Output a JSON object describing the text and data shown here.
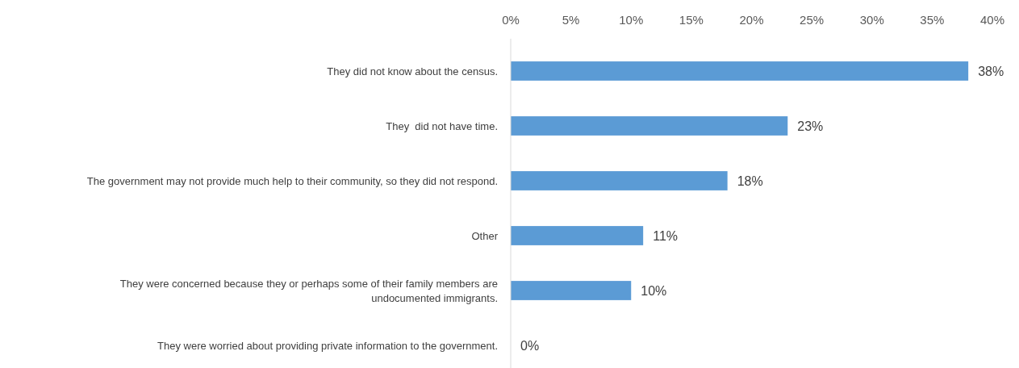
{
  "chart_data": {
    "type": "bar",
    "orientation": "horizontal",
    "categories": [
      "They did not know about the census.",
      "They  did not have time.",
      "The government may not provide much help to their community, so they did not respond.",
      "Other",
      "They were concerned because they or perhaps some of their family members are undocumented immigrants.",
      "They were worried about providing private information to the government."
    ],
    "values": [
      38,
      23,
      18,
      11,
      10,
      0
    ],
    "value_labels": [
      "38%",
      "23%",
      "18%",
      "11%",
      "10%",
      "0%"
    ],
    "color": "#5b9bd5",
    "xlim": [
      0,
      40
    ],
    "xticks": [
      {
        "value": 0,
        "label": "0%"
      },
      {
        "value": 5,
        "label": "5%"
      },
      {
        "value": 10,
        "label": "10%"
      },
      {
        "value": 15,
        "label": "15%"
      },
      {
        "value": 20,
        "label": "20%"
      },
      {
        "value": 25,
        "label": "25%"
      },
      {
        "value": 30,
        "label": "30%"
      },
      {
        "value": 35,
        "label": "35%"
      },
      {
        "value": 40,
        "label": "40%"
      }
    ],
    "grid": false
  }
}
